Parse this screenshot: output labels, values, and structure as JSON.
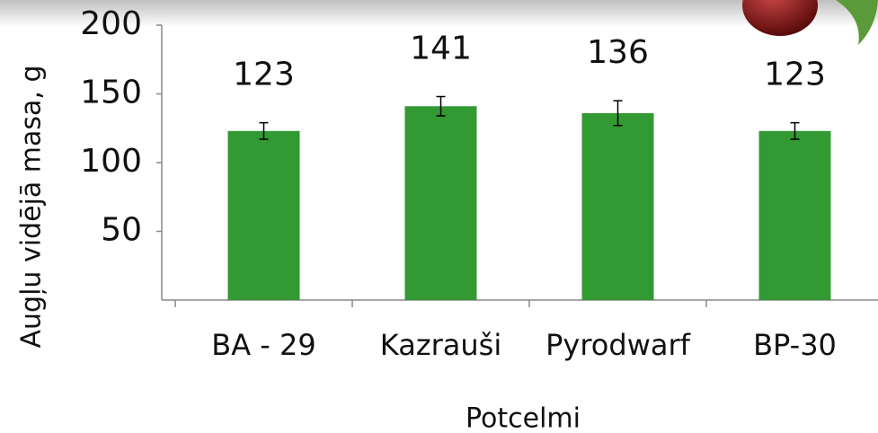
{
  "chart_data": {
    "type": "bar",
    "categories": [
      "BA - 29",
      "Kazrauši",
      "Pyrodwarf",
      "BP-30"
    ],
    "values": [
      123,
      141,
      136,
      123
    ],
    "errors": [
      6,
      7,
      9,
      6
    ],
    "color": "#339933",
    "ylim": [
      0,
      200
    ],
    "yticks": [
      50,
      100,
      150,
      200
    ],
    "xlabel": "Potcelmi",
    "ylabel": "Augļu vidējā masa, g"
  }
}
